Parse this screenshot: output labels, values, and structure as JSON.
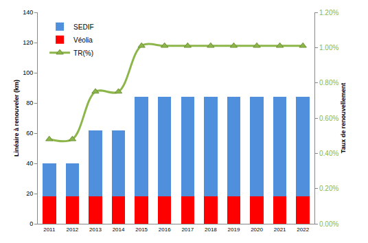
{
  "chart_data": {
    "type": "bar",
    "stacked": true,
    "grid": false,
    "legend": "top-left",
    "categories": [
      "2011",
      "2012",
      "2013",
      "2014",
      "2015",
      "2016",
      "2017",
      "2018",
      "2019",
      "2020",
      "2021",
      "2022"
    ],
    "series": [
      {
        "name": "SEDIF",
        "type": "bar",
        "color": "#4F8FDB",
        "values": [
          22,
          22,
          44,
          44,
          66,
          66,
          66,
          66,
          66,
          66,
          66,
          66
        ]
      },
      {
        "name": "Véolia",
        "type": "bar",
        "color": "#FF0000",
        "values": [
          18,
          18,
          18,
          18,
          18,
          18,
          18,
          18,
          18,
          18,
          18,
          18
        ]
      },
      {
        "name": "TR(%)",
        "type": "line",
        "axis": "y2",
        "color": "#8DB64A",
        "marker": "triangle-up",
        "line_style": "smooth",
        "values": [
          0.48,
          0.48,
          0.75,
          0.75,
          1.01,
          1.01,
          1.01,
          1.01,
          1.01,
          1.01,
          1.01,
          1.01
        ]
      }
    ],
    "y_label": "Linéaire à renouveler (km)",
    "y2_label": "Taux de renouvellement",
    "ylim": [
      0,
      140
    ],
    "yticks": [
      0,
      20,
      40,
      60,
      80,
      100,
      120,
      140
    ],
    "y2lim": [
      0,
      1.2
    ],
    "y2ticks": [
      {
        "value": 0,
        "label": "0.00%"
      },
      {
        "value": 0.2,
        "label": "0.20%"
      },
      {
        "value": 0.4,
        "label": "0.40%"
      },
      {
        "value": 0.6,
        "label": "0.60%"
      },
      {
        "value": 0.8,
        "label": "0.80%"
      },
      {
        "value": 1.0,
        "label": "1.00%"
      },
      {
        "value": 1.2,
        "label": "1.20%"
      }
    ]
  }
}
